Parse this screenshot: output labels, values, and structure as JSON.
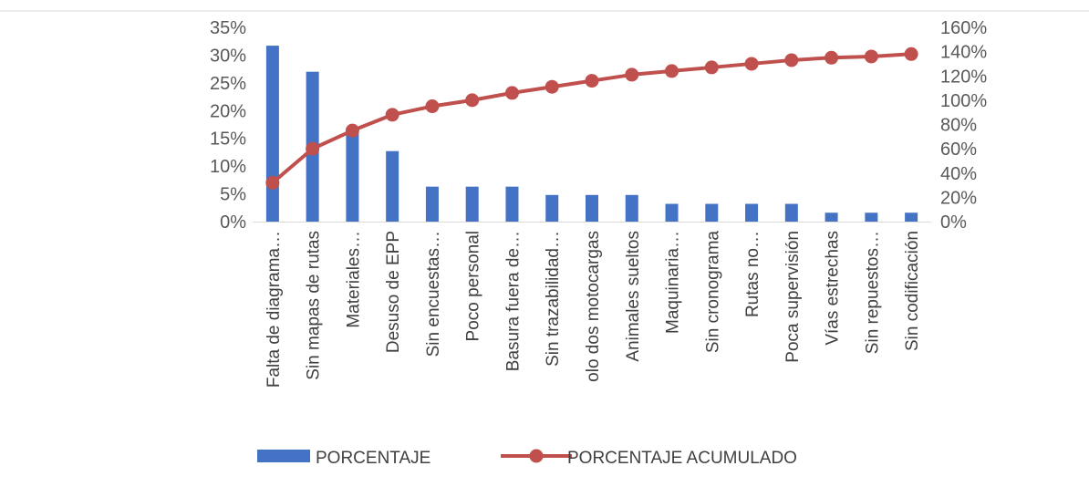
{
  "chart_data": {
    "type": "bar",
    "title": "",
    "xlabel": "",
    "ylabel": "",
    "categories": [
      "Falta de diagrama…",
      "Sin mapas de rutas",
      "Materiales…",
      "Desuso de EPP",
      "Sin encuestas…",
      "Poco personal",
      "Basura fuera de…",
      "Sin trazabilidad…",
      "olo dos motocargas",
      "Animales sueltos",
      "Maquinaria…",
      "Sin cronograma",
      "Rutas no…",
      "Poca supervisión",
      "Vías estrechas",
      "Sin repuestos…",
      "Sin codificación"
    ],
    "series": [
      {
        "name": "PORCENTAJE",
        "type": "bar",
        "axis": "left",
        "color": "#4472C4",
        "values": [
          31.7,
          27.0,
          16.0,
          12.7,
          6.3,
          6.3,
          6.3,
          4.8,
          4.8,
          4.8,
          3.2,
          3.2,
          3.2,
          3.2,
          1.6,
          1.6,
          1.6
        ]
      },
      {
        "name": "PORCENTAJE ACUMULADO",
        "type": "line",
        "axis": "right",
        "color": "#C0504D",
        "values": [
          32,
          60,
          75,
          88,
          95,
          100,
          106,
          111,
          116,
          121,
          124,
          127,
          130,
          133,
          135,
          136,
          138
        ]
      }
    ],
    "y_left": {
      "range": [
        0,
        35
      ],
      "ticks": [
        "0%",
        "5%",
        "10%",
        "15%",
        "20%",
        "25%",
        "30%",
        "35%"
      ]
    },
    "y_right": {
      "range": [
        0,
        160
      ],
      "ticks": [
        "0%",
        "20%",
        "40%",
        "60%",
        "80%",
        "100%",
        "120%",
        "140%",
        "160%"
      ]
    },
    "grid": false,
    "legend": "bottom"
  }
}
